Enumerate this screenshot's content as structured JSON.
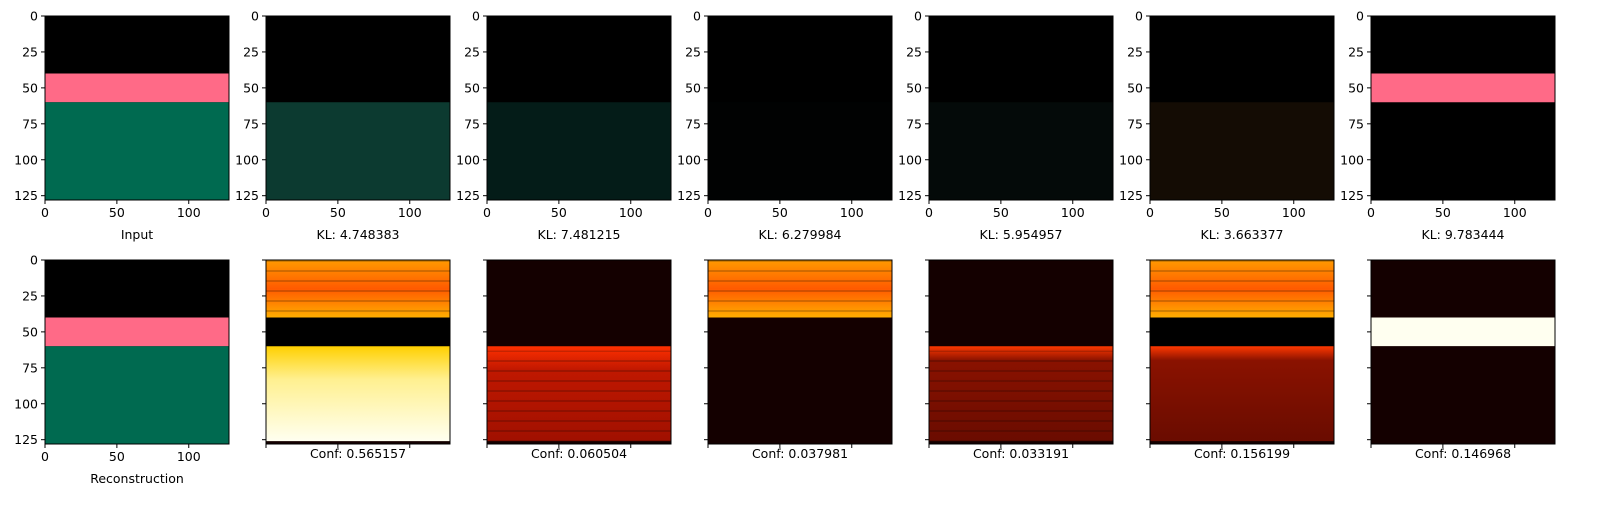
{
  "figure": {
    "top_row": {
      "input_label": "Input",
      "kl_labels": [
        "KL: 4.748383",
        "KL: 7.481215",
        "KL: 6.279984",
        "KL: 5.954957",
        "KL: 3.663377",
        "KL: 9.783444"
      ]
    },
    "bottom_row": {
      "recon_label": "Reconstruction",
      "conf_labels": [
        "Conf: 0.565157",
        "Conf: 0.060504",
        "Conf: 0.037981",
        "Conf: 0.033191",
        "Conf: 0.156199",
        "Conf: 0.146968"
      ]
    }
  },
  "chart_data": {
    "type": "heatmap",
    "grid": "2x7 image panels",
    "axes": {
      "x_ticks": [
        0,
        50,
        100
      ],
      "y_ticks": [
        0,
        25,
        50,
        75,
        100,
        125
      ],
      "xlim": [
        0,
        128
      ],
      "ylim": [
        128,
        0
      ]
    },
    "image_regions": {
      "black_band_rows": [
        0,
        40
      ],
      "pink_band_rows": [
        40,
        60
      ],
      "green_band_rows": [
        60,
        128
      ],
      "pink_color": "#ff6a87",
      "green_color": "#006a50"
    },
    "top_row_panels": [
      {
        "label": "Input",
        "tint": "#006a50"
      },
      {
        "label": "KL: 4.748383",
        "kl": 4.748383,
        "tint": "#0c3a30"
      },
      {
        "label": "KL: 7.481215",
        "kl": 7.481215,
        "tint": "#041c18"
      },
      {
        "label": "KL: 6.279984",
        "kl": 6.279984,
        "tint": "#010202"
      },
      {
        "label": "KL: 5.954957",
        "kl": 5.954957,
        "tint": "#040a09"
      },
      {
        "label": "KL: 3.663377",
        "kl": 3.663377,
        "tint": "#140c04"
      },
      {
        "label": "KL: 9.783444",
        "kl": 9.783444,
        "tint": "#000000"
      }
    ],
    "bottom_row_panels": [
      {
        "label": "Reconstruction"
      },
      {
        "label": "Conf: 0.565157",
        "conf": 0.565157
      },
      {
        "label": "Conf: 0.060504",
        "conf": 0.060504
      },
      {
        "label": "Conf: 0.037981",
        "conf": 0.037981
      },
      {
        "label": "Conf: 0.033191",
        "conf": 0.033191
      },
      {
        "label": "Conf: 0.156199",
        "conf": 0.156199
      },
      {
        "label": "Conf: 0.146968",
        "conf": 0.146968
      }
    ],
    "colors": {
      "black": "#000000",
      "heat_dark": "#140000",
      "heat_red": "#b01000",
      "heat_orange": "#ff8c00",
      "heat_yellow": "#ffe030",
      "heat_white": "#fffff0"
    }
  }
}
